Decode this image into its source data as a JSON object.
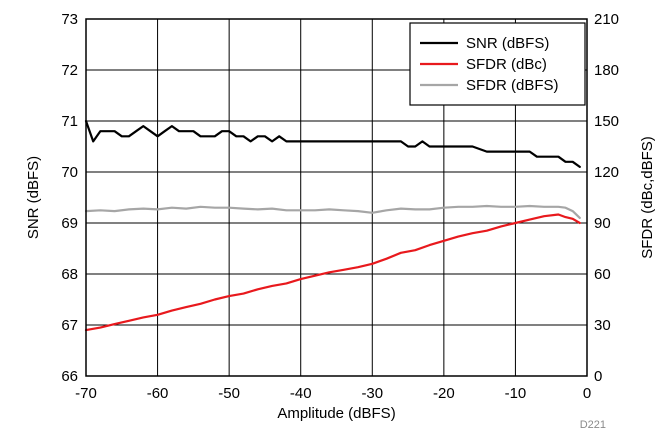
{
  "chart_data": {
    "type": "line",
    "xlabel": "Amplitude (dBFS)",
    "ylabel": "SNR (dBFS)",
    "y2label": "SFDR (dBc,dBFS)",
    "xlim": [
      -70,
      0
    ],
    "ylim": [
      66,
      73
    ],
    "y2lim": [
      0,
      210
    ],
    "xticks": [
      -70,
      -60,
      -50,
      -40,
      -30,
      -20,
      -10,
      0
    ],
    "yticks": [
      66,
      67,
      68,
      69,
      70,
      71,
      72,
      73
    ],
    "y2ticks": [
      0,
      30,
      60,
      90,
      120,
      150,
      180,
      210
    ],
    "grid": true,
    "legend_position": "top-right",
    "tag": "D221",
    "series": [
      {
        "name": "SNR (dBFS)",
        "axis": "left",
        "color": "#000000",
        "x": [
          -70,
          -69,
          -68,
          -67,
          -66,
          -65,
          -64,
          -63,
          -62,
          -61,
          -60,
          -59,
          -58,
          -57,
          -56,
          -55,
          -54,
          -53,
          -52,
          -51,
          -50,
          -49,
          -48,
          -47,
          -46,
          -45,
          -44,
          -43,
          -42,
          -41,
          -40,
          -38,
          -36,
          -34,
          -32,
          -30,
          -28,
          -26,
          -25,
          -24,
          -23,
          -22,
          -21,
          -20,
          -18,
          -16,
          -14,
          -12,
          -10,
          -9,
          -8,
          -7,
          -6,
          -5,
          -4,
          -3,
          -2,
          -1
        ],
        "y": [
          71.0,
          70.6,
          70.8,
          70.8,
          70.8,
          70.7,
          70.7,
          70.8,
          70.9,
          70.8,
          70.7,
          70.8,
          70.9,
          70.8,
          70.8,
          70.8,
          70.7,
          70.7,
          70.7,
          70.8,
          70.8,
          70.7,
          70.7,
          70.6,
          70.7,
          70.7,
          70.6,
          70.7,
          70.6,
          70.6,
          70.6,
          70.6,
          70.6,
          70.6,
          70.6,
          70.6,
          70.6,
          70.6,
          70.5,
          70.5,
          70.6,
          70.5,
          70.5,
          70.5,
          70.5,
          70.5,
          70.4,
          70.4,
          70.4,
          70.4,
          70.4,
          70.3,
          70.3,
          70.3,
          70.3,
          70.2,
          70.2,
          70.1
        ]
      },
      {
        "name": "SFDR (dBc)",
        "axis": "right",
        "color": "#e8191d",
        "x": [
          -70,
          -68,
          -66,
          -64,
          -62,
          -60,
          -58,
          -56,
          -54,
          -52,
          -50,
          -48,
          -46,
          -44,
          -42,
          -40,
          -38,
          -36,
          -34,
          -32,
          -30,
          -28,
          -26,
          -24,
          -22,
          -20,
          -18,
          -16,
          -14,
          -12,
          -10,
          -8,
          -6,
          -4,
          -3,
          -2,
          -1
        ],
        "y": [
          27,
          28.5,
          30.5,
          32.5,
          34.5,
          36,
          38.5,
          40.5,
          42.5,
          45,
          47,
          48.5,
          51,
          53,
          54.5,
          57,
          59,
          61,
          62.5,
          64,
          66,
          69,
          72.5,
          74,
          77,
          79.5,
          82,
          84,
          85.5,
          88,
          90,
          92,
          94,
          95,
          93.5,
          92.5,
          90
        ]
      },
      {
        "name": "SFDR (dBFS)",
        "axis": "right",
        "color": "#a6a6a6",
        "x": [
          -70,
          -68,
          -66,
          -64,
          -62,
          -60,
          -58,
          -56,
          -54,
          -52,
          -50,
          -48,
          -46,
          -44,
          -42,
          -40,
          -38,
          -36,
          -34,
          -32,
          -30,
          -28,
          -26,
          -24,
          -22,
          -20,
          -18,
          -16,
          -14,
          -12,
          -10,
          -8,
          -6,
          -4,
          -3,
          -2,
          -1
        ],
        "y": [
          97,
          97.5,
          97,
          98,
          98.5,
          98,
          99,
          98.5,
          99.5,
          99,
          99,
          98.5,
          98,
          98.5,
          97.5,
          97.5,
          97.5,
          98,
          97.5,
          97,
          96,
          97.5,
          98.5,
          98,
          98,
          99,
          99.5,
          99.5,
          100,
          99.5,
          99.5,
          100,
          99.5,
          99.5,
          99,
          97,
          93
        ]
      }
    ]
  }
}
